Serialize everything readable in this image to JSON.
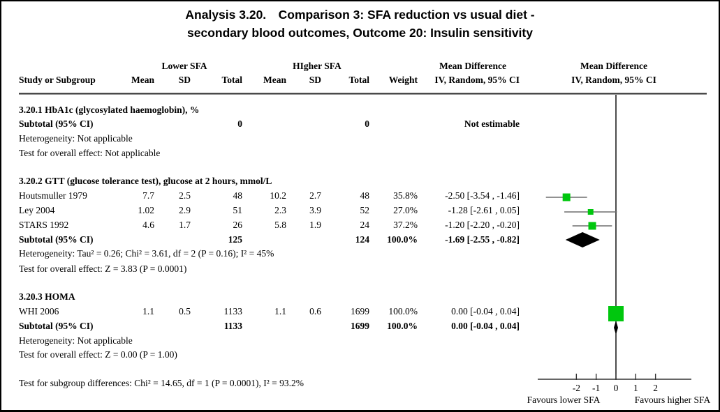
{
  "title": {
    "line1": "Analysis 3.20. Comparison 3: SFA reduction vs usual diet -",
    "line2": "secondary blood outcomes, Outcome 20: Insulin sensitivity"
  },
  "table": {
    "group_headers": {
      "lower": "Lower SFA",
      "higher": "HIgher SFA",
      "md1": "Mean Difference",
      "md2": "Mean Difference"
    },
    "columns": {
      "study": "Study or Subgroup",
      "mean1": "Mean",
      "sd1": "SD",
      "total1": "Total",
      "mean2": "Mean",
      "sd2": "SD",
      "total2": "Total",
      "weight": "Weight",
      "ci": "IV, Random, 95% CI",
      "ci_plot": "IV, Random, 95% CI"
    },
    "sections": [
      {
        "title": "3.20.1 HbA1c (glycosylated haemoglobin), %",
        "studies": [],
        "subtotal": {
          "label": "Subtotal (95% CI)",
          "total1": "0",
          "total2": "0",
          "weight": "",
          "ci": "Not estimable"
        },
        "notes": [
          "Heterogeneity: Not applicable",
          "Test for overall effect: Not applicable"
        ]
      },
      {
        "title": "3.20.2 GTT (glucose tolerance test), glucose at 2 hours, mmol/L",
        "studies": [
          {
            "label": "Houtsmuller 1979",
            "mean1": "7.7",
            "sd1": "2.5",
            "total1": "48",
            "mean2": "10.2",
            "sd2": "2.7",
            "total2": "48",
            "weight": "35.8%",
            "ci": "-2.50 [-3.54 , -1.46]"
          },
          {
            "label": "Ley 2004",
            "mean1": "1.02",
            "sd1": "2.9",
            "total1": "51",
            "mean2": "2.3",
            "sd2": "3.9",
            "total2": "52",
            "weight": "27.0%",
            "ci": "-1.28 [-2.61 , 0.05]"
          },
          {
            "label": "STARS 1992",
            "mean1": "4.6",
            "sd1": "1.7",
            "total1": "26",
            "mean2": "5.8",
            "sd2": "1.9",
            "total2": "24",
            "weight": "37.2%",
            "ci": "-1.20 [-2.20 , -0.20]"
          }
        ],
        "subtotal": {
          "label": "Subtotal (95% CI)",
          "total1": "125",
          "total2": "124",
          "weight": "100.0%",
          "ci": "-1.69 [-2.55 , -0.82]"
        },
        "notes": [
          "Heterogeneity: Tau² = 0.26; Chi² = 3.61, df = 2 (P = 0.16); I² = 45%",
          "Test for overall effect: Z = 3.83 (P = 0.0001)"
        ]
      },
      {
        "title": "3.20.3 HOMA",
        "studies": [
          {
            "label": "WHI 2006",
            "mean1": "1.1",
            "sd1": "0.5",
            "total1": "1133",
            "mean2": "1.1",
            "sd2": "0.6",
            "total2": "1699",
            "weight": "100.0%",
            "ci": "0.00 [-0.04 , 0.04]"
          }
        ],
        "subtotal": {
          "label": "Subtotal (95% CI)",
          "total1": "1133",
          "total2": "1699",
          "weight": "100.0%",
          "ci": "0.00 [-0.04 , 0.04]"
        },
        "notes": [
          "Heterogeneity: Not applicable",
          "Test for overall effect: Z = 0.00 (P = 1.00)"
        ]
      }
    ],
    "footer": "Test for subgroup differences: Chi² = 14.65, df = 1 (P = 0.0001), I² = 93.2%"
  },
  "plot": {
    "ticks": [
      "-2",
      "-1",
      "0",
      "1",
      "2"
    ],
    "favours_left": "Favours lower SFA",
    "favours_right": "Favours higher SFA",
    "colors": {
      "marker": "#00c70e",
      "ci_line": "#6e6e6e",
      "diamond": "#000000",
      "axis": "#333333"
    }
  },
  "chart_data": {
    "type": "forest",
    "title": "Analysis 3.20. Comparison 3: SFA reduction vs usual diet - secondary blood outcomes, Outcome 20: Insulin sensitivity",
    "effect_measure": "Mean Difference, IV, Random, 95% CI",
    "axis": {
      "ticks": [
        -2,
        -1,
        0,
        1,
        2
      ],
      "xlim": [
        -4,
        4
      ],
      "left_label": "Favours lower SFA",
      "right_label": "Favours higher SFA"
    },
    "subgroups": [
      {
        "name": "3.20.1 HbA1c (glycosylated haemoglobin), %",
        "studies": [],
        "subtotal": {
          "estimate": null,
          "ci_low": null,
          "ci_high": null,
          "note": "Not estimable",
          "total1": 0,
          "total2": 0
        },
        "heterogeneity": "Not applicable",
        "overall_effect": "Not applicable"
      },
      {
        "name": "3.20.2 GTT (glucose tolerance test), glucose at 2 hours, mmol/L",
        "studies": [
          {
            "study": "Houtsmuller 1979",
            "mean1": 7.7,
            "sd1": 2.5,
            "n1": 48,
            "mean2": 10.2,
            "sd2": 2.7,
            "n2": 48,
            "weight_pct": 35.8,
            "estimate": -2.5,
            "ci_low": -3.54,
            "ci_high": -1.46
          },
          {
            "study": "Ley 2004",
            "mean1": 1.02,
            "sd1": 2.9,
            "n1": 51,
            "mean2": 2.3,
            "sd2": 3.9,
            "n2": 52,
            "weight_pct": 27.0,
            "estimate": -1.28,
            "ci_low": -2.61,
            "ci_high": 0.05
          },
          {
            "study": "STARS 1992",
            "mean1": 4.6,
            "sd1": 1.7,
            "n1": 26,
            "mean2": 5.8,
            "sd2": 1.9,
            "n2": 24,
            "weight_pct": 37.2,
            "estimate": -1.2,
            "ci_low": -2.2,
            "ci_high": -0.2
          }
        ],
        "subtotal": {
          "estimate": -1.69,
          "ci_low": -2.55,
          "ci_high": -0.82,
          "total1": 125,
          "total2": 124,
          "weight_pct": 100.0
        },
        "heterogeneity": "Tau² = 0.26; Chi² = 3.61, df = 2 (P = 0.16); I² = 45%",
        "overall_effect": "Z = 3.83 (P = 0.0001)"
      },
      {
        "name": "3.20.3 HOMA",
        "studies": [
          {
            "study": "WHI 2006",
            "mean1": 1.1,
            "sd1": 0.5,
            "n1": 1133,
            "mean2": 1.1,
            "sd2": 0.6,
            "n2": 1699,
            "weight_pct": 100.0,
            "estimate": 0.0,
            "ci_low": -0.04,
            "ci_high": 0.04
          }
        ],
        "subtotal": {
          "estimate": 0.0,
          "ci_low": -0.04,
          "ci_high": 0.04,
          "total1": 1133,
          "total2": 1699,
          "weight_pct": 100.0
        },
        "heterogeneity": "Not applicable",
        "overall_effect": "Z = 0.00 (P = 1.00)"
      }
    ],
    "subgroup_difference_test": "Chi² = 14.65, df = 1 (P = 0.0001), I² = 93.2%"
  }
}
